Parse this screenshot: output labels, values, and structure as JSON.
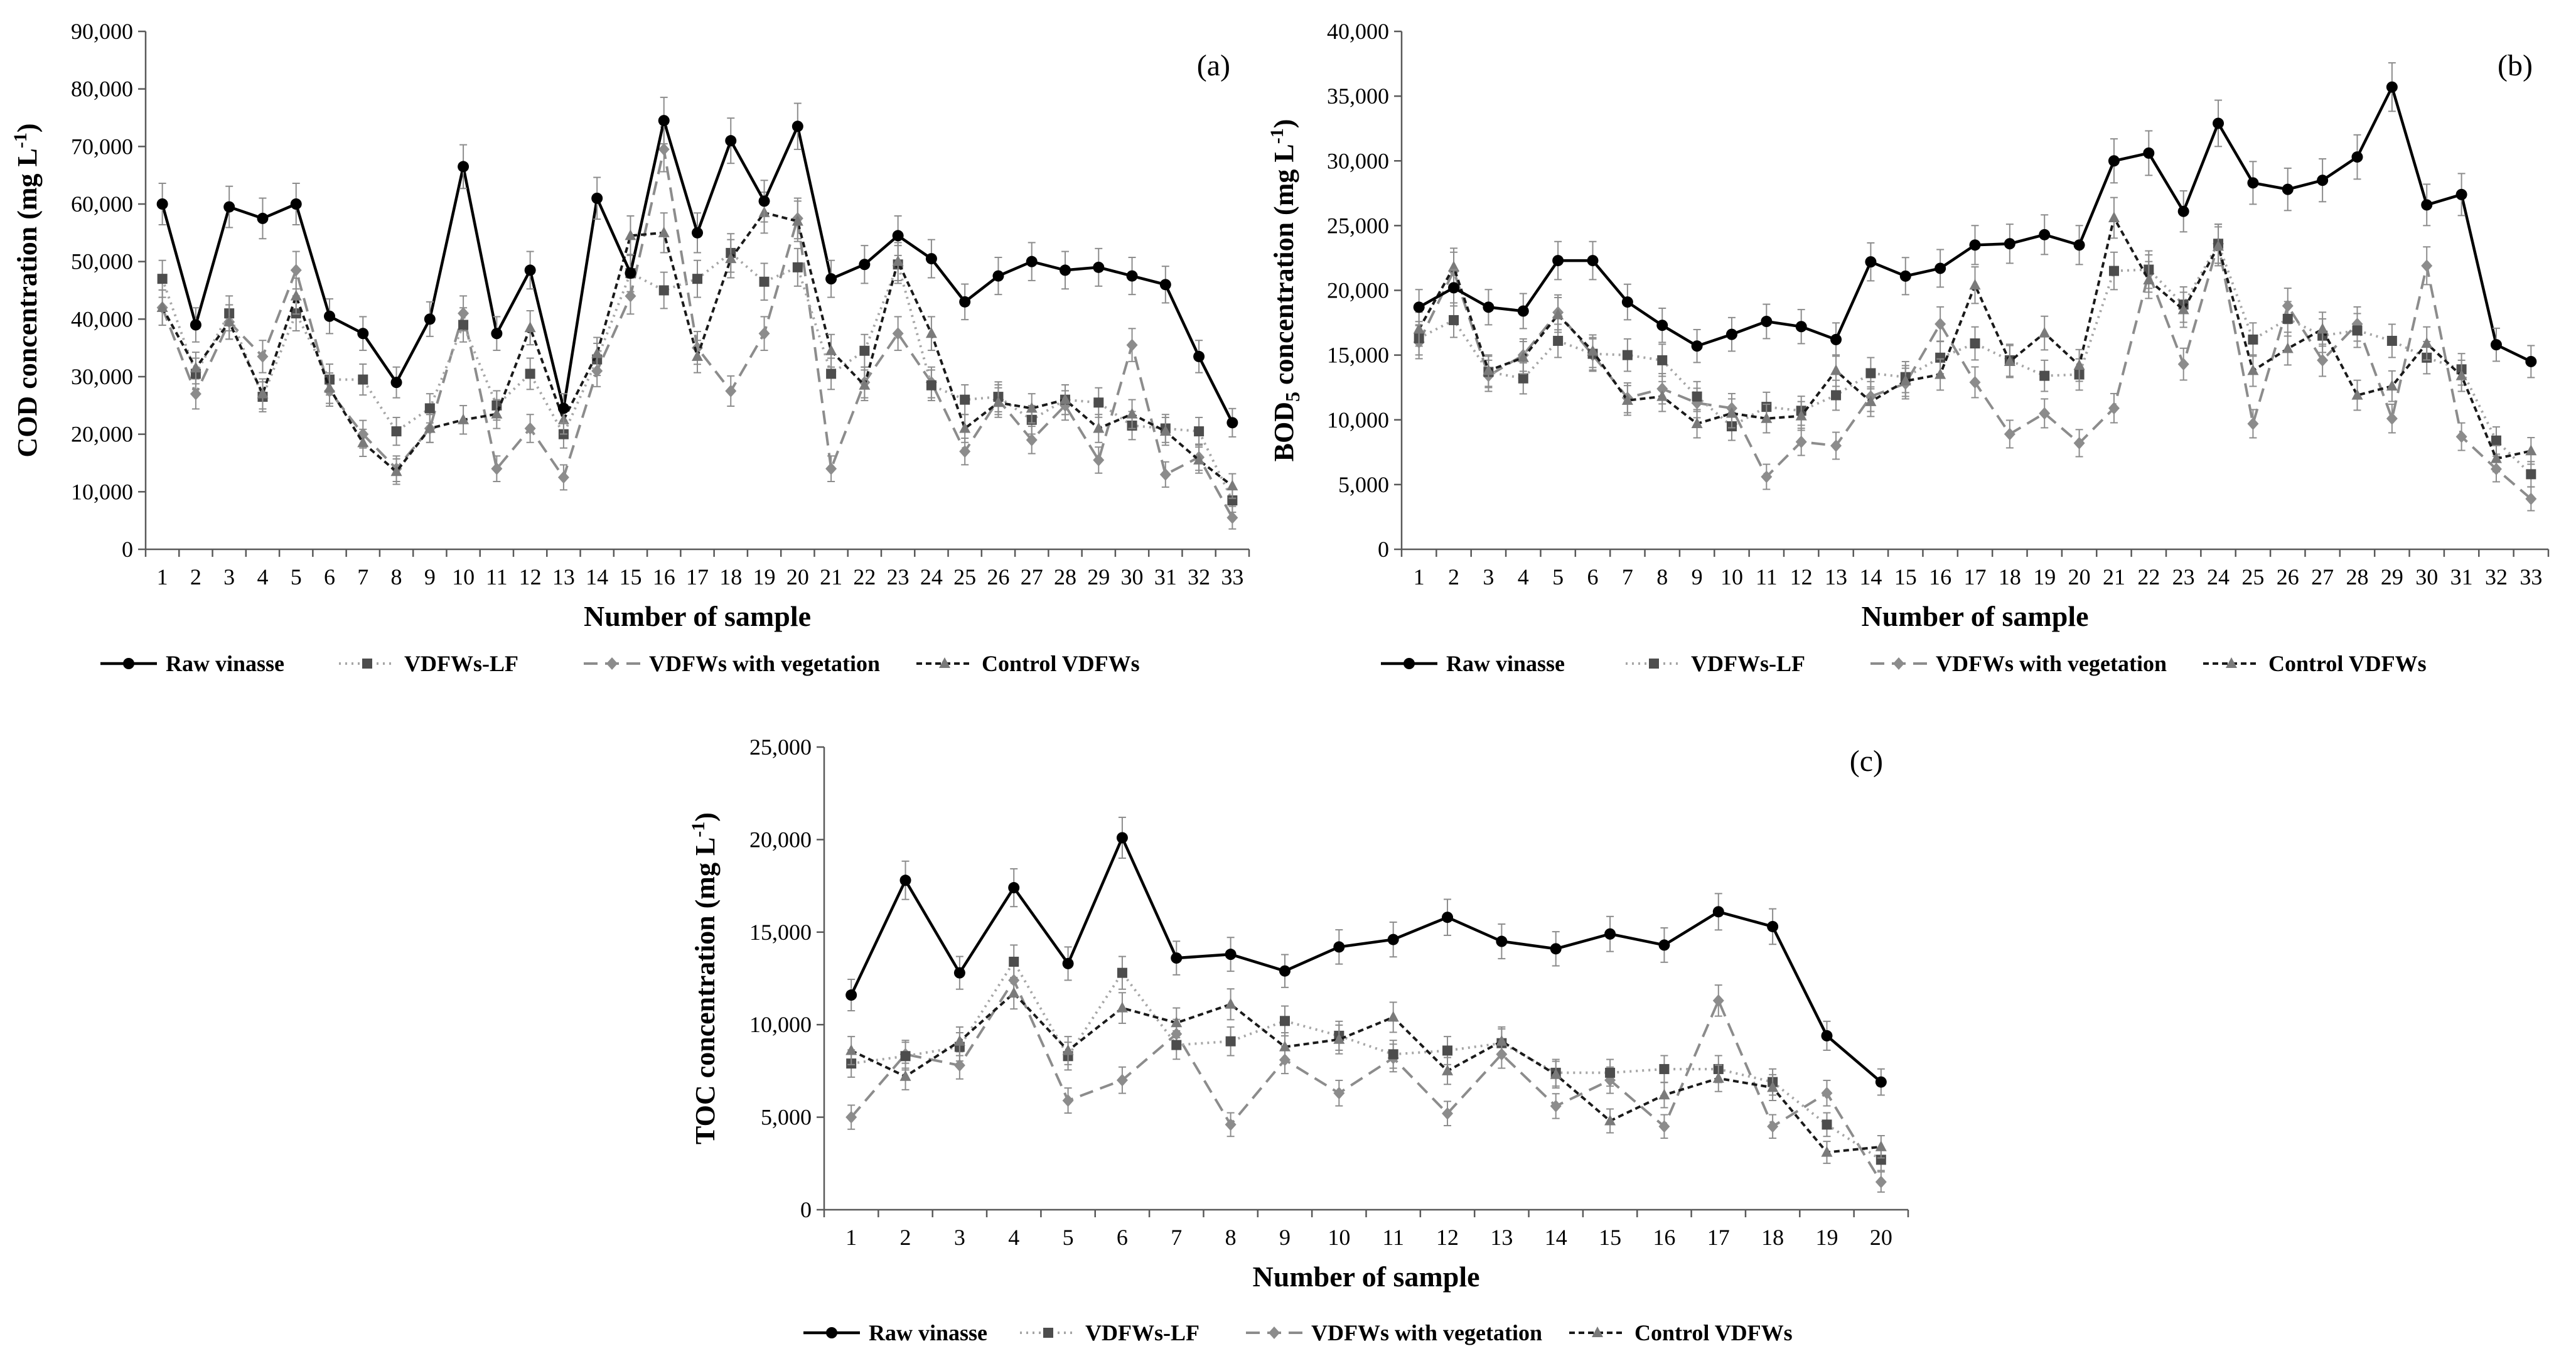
{
  "chart_data": [
    {
      "type": "line",
      "panel": "(a)",
      "xlabel": "Number of sample",
      "ylabel": "COD concentration (mg L",
      "ylabel_sup": "-1",
      "ylabel_end": ")",
      "ylim": [
        0,
        90000
      ],
      "yticks": [
        "0",
        "10,000",
        "20,000",
        "30,000",
        "40,000",
        "50,000",
        "60,000",
        "70,000",
        "80,000",
        "90,000"
      ],
      "categories": [
        "1",
        "2",
        "3",
        "4",
        "5",
        "6",
        "7",
        "8",
        "9",
        "10",
        "11",
        "12",
        "13",
        "14",
        "15",
        "16",
        "17",
        "18",
        "19",
        "20",
        "21",
        "22",
        "23",
        "24",
        "25",
        "26",
        "27",
        "28",
        "29",
        "30",
        "31",
        "32",
        "33"
      ],
      "series": [
        {
          "name": "Raw vinasse",
          "values": [
            60000,
            39000,
            59500,
            57500,
            60000,
            40500,
            37500,
            29000,
            40000,
            66500,
            37500,
            48500,
            24500,
            61000,
            48000,
            74500,
            55000,
            71000,
            60500,
            73500,
            47000,
            49500,
            54500,
            50500,
            43000,
            47500,
            50000,
            48500,
            49000,
            47500,
            46000,
            33500,
            22000
          ]
        },
        {
          "name": "VDFWs-LF",
          "values": [
            47000,
            30500,
            41000,
            26500,
            41000,
            29500,
            29500,
            20500,
            24500,
            39000,
            25000,
            30500,
            20000,
            33000,
            48000,
            45000,
            47000,
            51500,
            46500,
            49000,
            30500,
            34500,
            49500,
            28500,
            26000,
            26500,
            22500,
            26000,
            25500,
            21500,
            21000,
            20500,
            8500
          ]
        },
        {
          "name": "VDFWs with vegetation",
          "values": [
            42000,
            27000,
            39500,
            33500,
            48500,
            27500,
            20000,
            14000,
            21000,
            41000,
            14000,
            21000,
            12500,
            31000,
            44000,
            69500,
            35000,
            27500,
            37500,
            57500,
            14000,
            29000,
            37500,
            29000,
            17000,
            26000,
            19000,
            25000,
            15500,
            35500,
            13000,
            16000,
            5500
          ]
        },
        {
          "name": "Control VDFWs",
          "values": [
            42000,
            31500,
            39500,
            27000,
            44000,
            28000,
            18500,
            13500,
            21000,
            22500,
            23500,
            38500,
            22500,
            34000,
            54500,
            55000,
            33500,
            50500,
            58500,
            57000,
            34500,
            28500,
            50000,
            37500,
            21000,
            25500,
            24500,
            26000,
            21000,
            23500,
            20500,
            15500,
            11000
          ]
        }
      ]
    },
    {
      "type": "line",
      "panel": "(b)",
      "xlabel": "Number of sample",
      "ylabel": "BOD",
      "ylabel_sub": "5",
      "ylabel_end": " concentration (mg L",
      "ylabel_sup": "-1",
      "ylabel_close": ")",
      "ylim": [
        0,
        40000
      ],
      "yticks": [
        "0",
        "5,000",
        "10,000",
        "15,000",
        "20,000",
        "25,000",
        "30,000",
        "35,000",
        "40,000"
      ],
      "categories": [
        "1",
        "2",
        "3",
        "4",
        "5",
        "6",
        "7",
        "8",
        "9",
        "10",
        "11",
        "12",
        "13",
        "14",
        "15",
        "16",
        "17",
        "18",
        "19",
        "20",
        "21",
        "22",
        "23",
        "24",
        "25",
        "26",
        "27",
        "28",
        "29",
        "30",
        "31",
        "32",
        "33"
      ],
      "series": [
        {
          "name": "Raw vinasse",
          "values": [
            18700,
            20200,
            18700,
            18400,
            22300,
            22300,
            19100,
            17300,
            15700,
            16600,
            17600,
            17200,
            16200,
            22200,
            21100,
            21700,
            23500,
            23600,
            24300,
            23500,
            30000,
            30600,
            26100,
            32900,
            28300,
            27800,
            28500,
            30300,
            35700,
            26600,
            27400,
            15800,
            14500
          ]
        },
        {
          "name": "VDFWs-LF",
          "values": [
            16300,
            17700,
            13700,
            13200,
            16100,
            15100,
            15000,
            14600,
            11800,
            9500,
            11000,
            10700,
            11900,
            13600,
            13300,
            14800,
            15900,
            14600,
            13400,
            13500,
            21500,
            21600,
            18900,
            23600,
            16200,
            17800,
            16500,
            16900,
            16100,
            14800,
            13900,
            8400,
            5800
          ]
        },
        {
          "name": "VDFWs with vegetation",
          "values": [
            16000,
            21500,
            13400,
            15000,
            18300,
            15000,
            11700,
            12400,
            11300,
            10900,
            5600,
            8300,
            8000,
            11800,
            12800,
            17400,
            12900,
            8900,
            10500,
            8200,
            10900,
            21300,
            14300,
            23600,
            9700,
            18800,
            14600,
            17400,
            10100,
            21900,
            8700,
            6200,
            3900
          ]
        },
        {
          "name": "Control VDFWs",
          "values": [
            17000,
            21800,
            13800,
            14800,
            18100,
            15300,
            11500,
            11800,
            9700,
            10500,
            10100,
            10300,
            13800,
            11400,
            13000,
            13500,
            20400,
            14500,
            16700,
            14200,
            25600,
            20800,
            18500,
            23400,
            13800,
            15500,
            17000,
            11900,
            12600,
            15900,
            13400,
            7000,
            7600
          ]
        }
      ]
    },
    {
      "type": "line",
      "panel": "(c)",
      "xlabel": "Number of sample",
      "ylabel": "TOC concentration (mg L",
      "ylabel_sup": "-1",
      "ylabel_end": ")",
      "ylim": [
        0,
        25000
      ],
      "yticks": [
        "0",
        "5,000",
        "10,000",
        "15,000",
        "20,000",
        "25,000"
      ],
      "categories": [
        "1",
        "2",
        "3",
        "4",
        "5",
        "6",
        "7",
        "8",
        "9",
        "10",
        "11",
        "12",
        "13",
        "14",
        "15",
        "16",
        "17",
        "18",
        "19",
        "20"
      ],
      "series": [
        {
          "name": "Raw vinasse",
          "values": [
            11600,
            17800,
            12800,
            17400,
            13300,
            20100,
            13600,
            13800,
            12900,
            14200,
            14600,
            15800,
            14500,
            14100,
            14900,
            14300,
            16100,
            15300,
            9400,
            6900
          ]
        },
        {
          "name": "VDFWs-LF",
          "values": [
            7900,
            8300,
            8800,
            13400,
            8300,
            12800,
            8900,
            9100,
            10200,
            9400,
            8400,
            8600,
            9000,
            7400,
            7400,
            7600,
            7600,
            6900,
            4600,
            2700
          ]
        },
        {
          "name": "VDFWs with vegetation",
          "values": [
            5000,
            8400,
            7800,
            12400,
            5900,
            7000,
            9500,
            4600,
            8100,
            6300,
            8200,
            5200,
            8400,
            5600,
            7000,
            4500,
            11300,
            4500,
            6300,
            1500
          ]
        },
        {
          "name": "Control VDFWs",
          "values": [
            8600,
            7200,
            9100,
            11700,
            8600,
            10900,
            10100,
            11100,
            8800,
            9200,
            10400,
            7500,
            9100,
            7300,
            4800,
            6200,
            7100,
            6600,
            3100,
            3400
          ]
        }
      ]
    }
  ],
  "legend": [
    "Raw vinasse",
    "VDFWs-LF",
    "VDFWs with vegetation",
    "Control VDFWs"
  ],
  "colors": {
    "Raw vinasse": "#000000",
    "VDFWs-LF": "#4d4d4d",
    "VDFWs with vegetation": "#8c8c8c",
    "Control VDFWs": "#7a7a7a",
    "control_line": "#1a1a1a",
    "lf_line": "#a6a6a6",
    "veg_line": "#8c8c8c",
    "axis": "#595959",
    "error_bar": "#8c8c8c"
  }
}
